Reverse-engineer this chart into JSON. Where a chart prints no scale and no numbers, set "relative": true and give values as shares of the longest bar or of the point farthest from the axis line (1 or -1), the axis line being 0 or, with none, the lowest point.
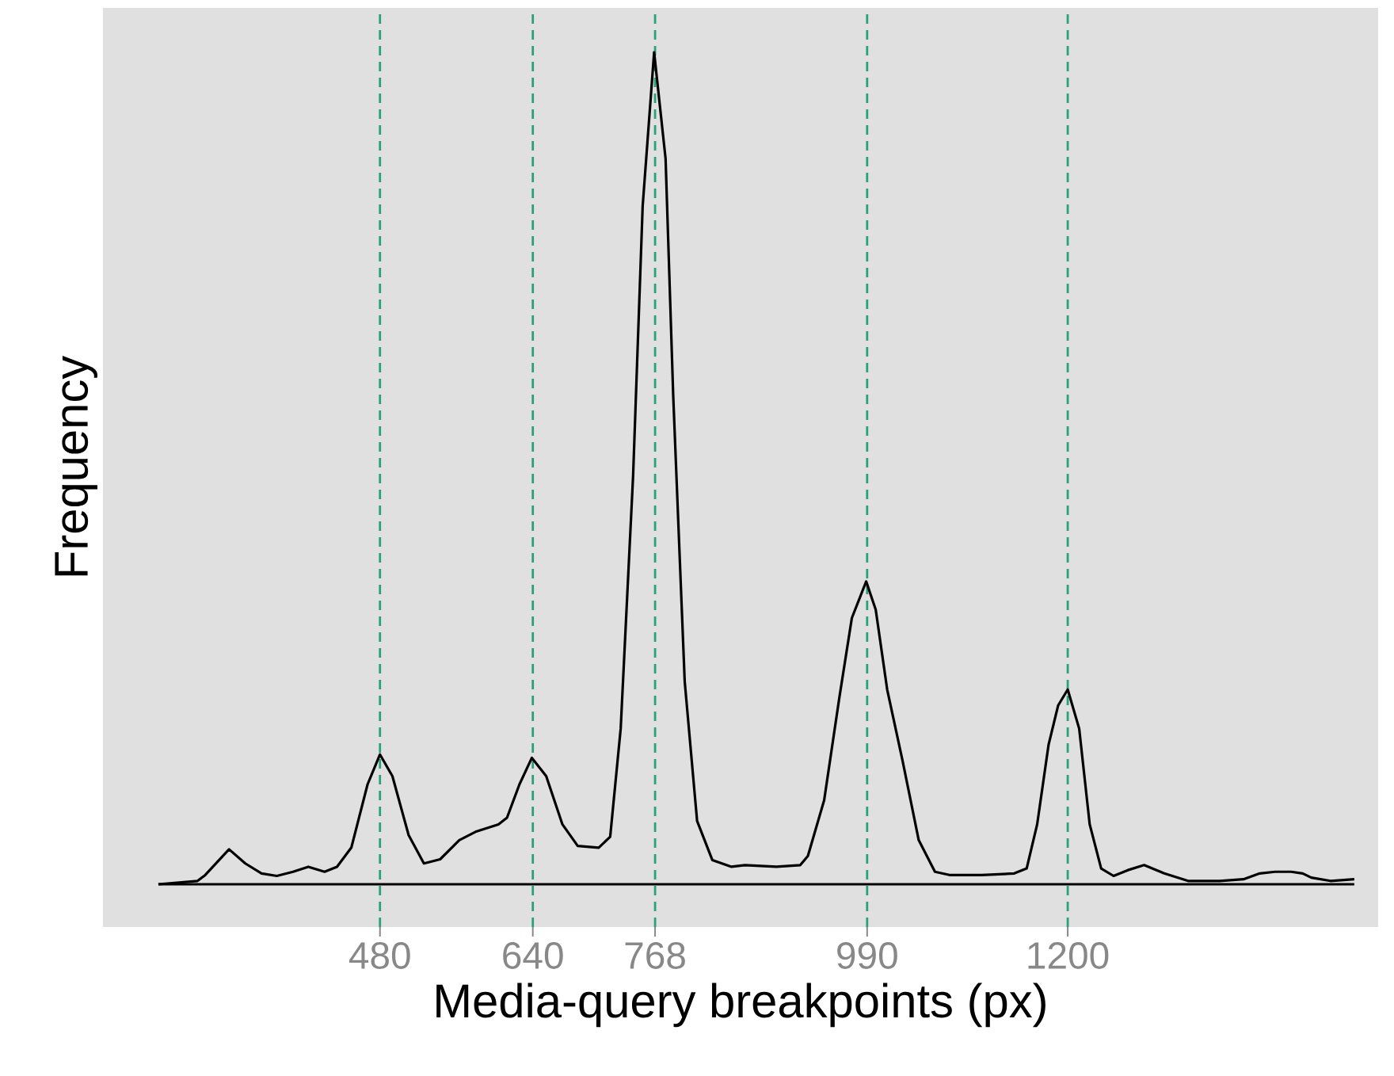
{
  "chart_data": {
    "type": "line",
    "relative": true,
    "xlabel": "Media-query breakpoints (px)",
    "ylabel": "Frequency",
    "xlim": [
      190,
      1525
    ],
    "xticks": [
      480,
      640,
      768,
      990,
      1200
    ],
    "marker": "none",
    "line_style": "solid",
    "series": [
      {
        "color": "#000000",
        "x": [
          248,
          289,
          297,
          322,
          339,
          356,
          372,
          389,
          405,
          422,
          435,
          450,
          467,
          480,
          493,
          510,
          526,
          543,
          563,
          580,
          604,
          613,
          626,
          639,
          654,
          671,
          687,
          709,
          721,
          732,
          745,
          755,
          767,
          779,
          787,
          799,
          812,
          828,
          848,
          862,
          895,
          920,
          928,
          945,
          961,
          974,
          989,
          999,
          1011,
          1027,
          1044,
          1061,
          1077,
          1110,
          1144,
          1157,
          1168,
          1180,
          1190,
          1200,
          1212,
          1223,
          1235,
          1248,
          1263,
          1280,
          1301,
          1326,
          1359,
          1384,
          1401,
          1417,
          1434,
          1446,
          1455,
          1475,
          1500
        ],
        "values": [
          0,
          0.004,
          0.011,
          0.042,
          0.025,
          0.013,
          0.01,
          0.015,
          0.021,
          0.015,
          0.021,
          0.044,
          0.12,
          0.156,
          0.13,
          0.059,
          0.025,
          0.03,
          0.053,
          0.063,
          0.072,
          0.08,
          0.12,
          0.152,
          0.13,
          0.072,
          0.046,
          0.044,
          0.057,
          0.187,
          0.491,
          0.815,
          1,
          0.872,
          0.587,
          0.244,
          0.076,
          0.029,
          0.021,
          0.023,
          0.021,
          0.023,
          0.034,
          0.101,
          0.225,
          0.32,
          0.364,
          0.33,
          0.234,
          0.149,
          0.053,
          0.015,
          0.011,
          0.011,
          0.013,
          0.019,
          0.072,
          0.168,
          0.215,
          0.234,
          0.187,
          0.072,
          0.019,
          0.01,
          0.017,
          0.023,
          0.013,
          0.004,
          0.004,
          0.006,
          0.013,
          0.015,
          0.015,
          0.013,
          0.008,
          0.004,
          0.006
        ]
      }
    ],
    "ref_lines": [
      {
        "axis": "x",
        "value": 480,
        "color": "#2ca07a",
        "line_style": "dashed"
      },
      {
        "axis": "x",
        "value": 640,
        "color": "#2ca07a",
        "line_style": "dashed"
      },
      {
        "axis": "x",
        "value": 768,
        "color": "#2ca07a",
        "line_style": "dashed"
      },
      {
        "axis": "x",
        "value": 990,
        "color": "#2ca07a",
        "line_style": "dashed"
      },
      {
        "axis": "x",
        "value": 1200,
        "color": "#2ca07a",
        "line_style": "dashed"
      },
      {
        "axis": "y",
        "value": 0,
        "color": "#000000",
        "line_style": "solid"
      }
    ]
  }
}
